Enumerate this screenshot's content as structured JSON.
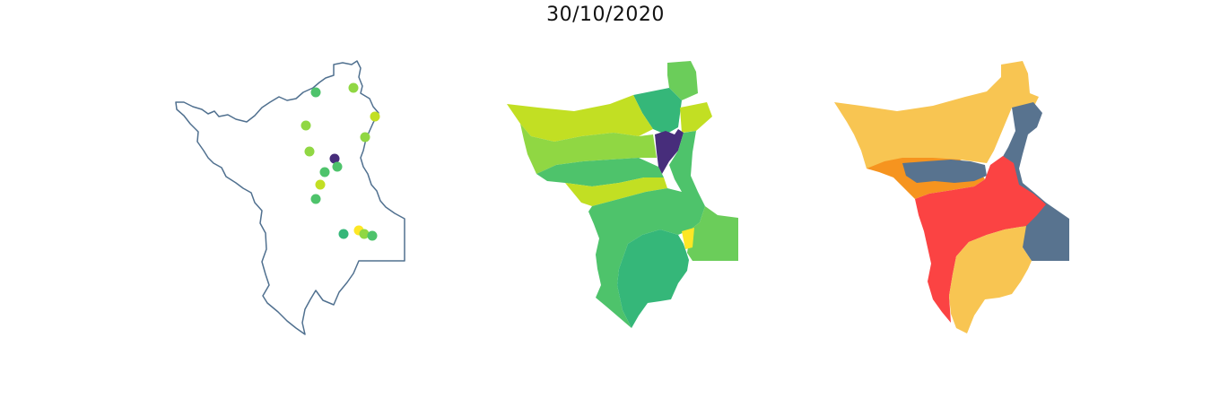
{
  "title": "30/10/2020",
  "colors": {
    "outline": "#50708f",
    "viridis_dark": "#472d7b",
    "viridis_teal": "#35b779",
    "viridis_green": "#4ec36b",
    "viridis_lime": "#90d743",
    "viridis_yellowgreen": "#c2df23",
    "viridis_yellow": "#fde725",
    "cat_yellow": "#f8c552",
    "cat_orange": "#f6941f",
    "cat_red": "#fb4343",
    "cat_slate": "#58738f"
  },
  "map_panels": [
    {
      "name": "station-points-map",
      "kind": "outline with points"
    },
    {
      "name": "continuous-basin-map",
      "kind": "continuous color choropleth"
    },
    {
      "name": "categorical-basin-map",
      "kind": "categorical color choropleth"
    }
  ]
}
